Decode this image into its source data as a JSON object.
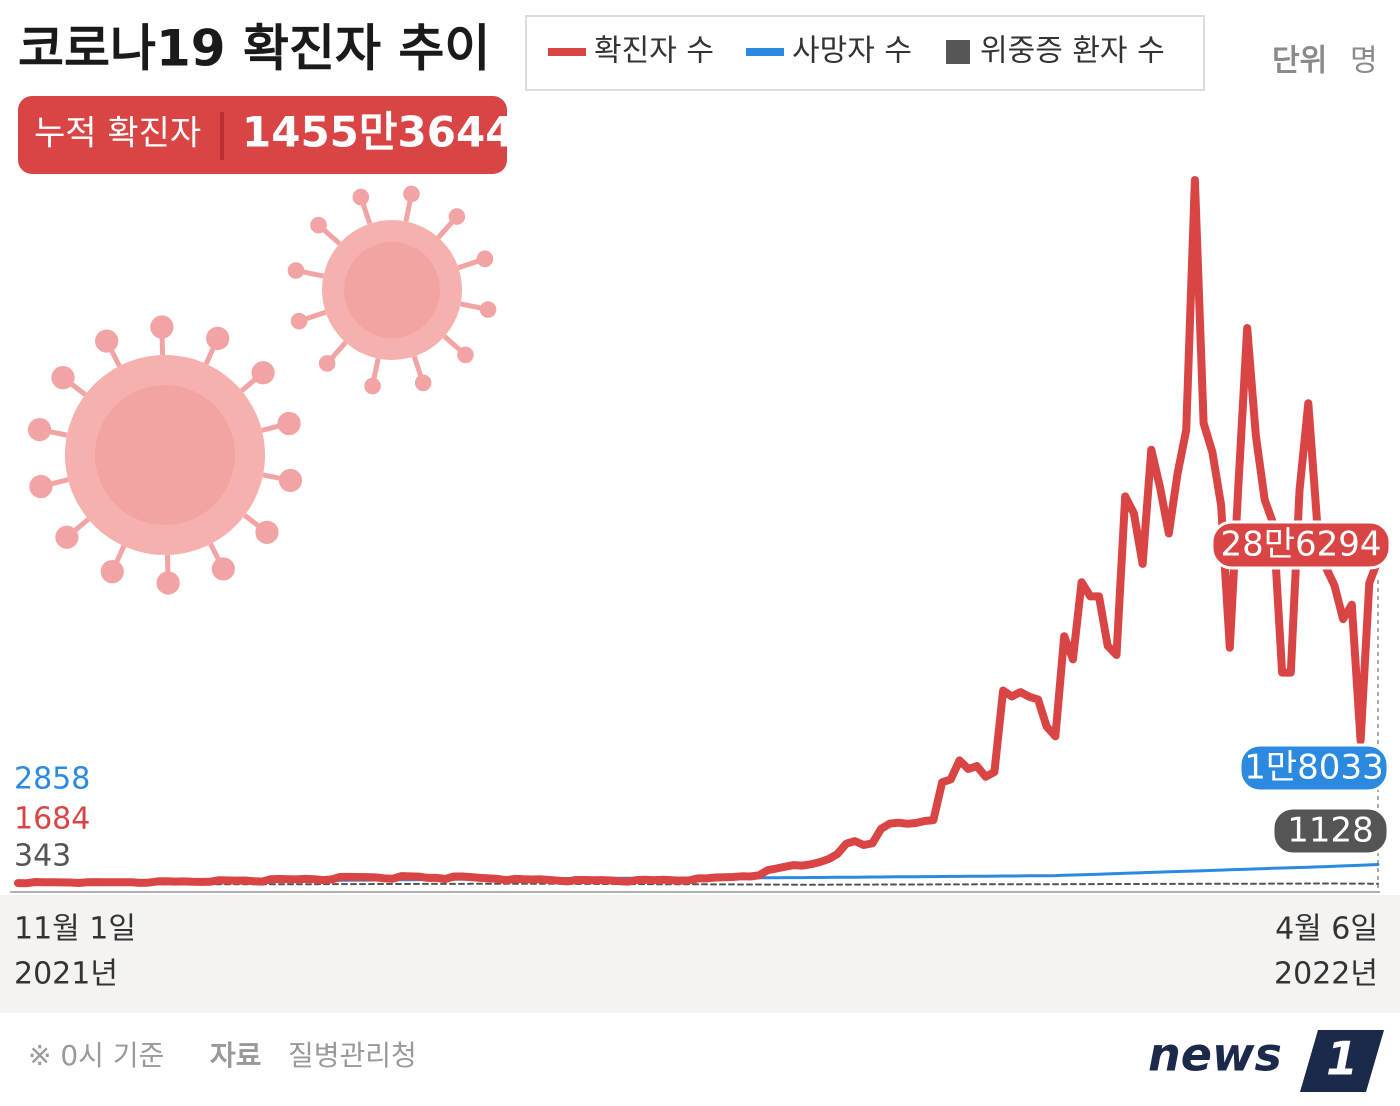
{
  "chart_data": {
    "type": "line",
    "title": "코로나19 확진자 추이",
    "unit_label": "단위",
    "unit": "명",
    "total_label": "누적 확진자",
    "total": "1455만3644",
    "x_start_year": "2021년",
    "x_end_year": "2022년",
    "categories": [
      "11월 1일",
      null,
      null,
      null,
      null,
      null,
      null,
      null,
      null,
      null,
      null,
      null,
      null,
      null,
      null,
      null,
      null,
      null,
      null,
      null,
      null,
      null,
      null,
      null,
      null,
      null,
      null,
      null,
      null,
      null,
      null,
      null,
      null,
      null,
      null,
      null,
      null,
      null,
      null,
      null,
      null,
      null,
      null,
      null,
      null,
      null,
      null,
      null,
      null,
      null,
      null,
      null,
      null,
      null,
      null,
      null,
      null,
      null,
      null,
      null,
      null,
      null,
      null,
      null,
      null,
      null,
      null,
      null,
      null,
      null,
      null,
      null,
      null,
      null,
      null,
      null,
      null,
      null,
      null,
      null,
      null,
      null,
      null,
      null,
      null,
      null,
      null,
      null,
      null,
      null,
      null,
      null,
      null,
      null,
      null,
      null,
      null,
      null,
      null,
      null,
      null,
      null,
      null,
      null,
      null,
      null,
      null,
      null,
      null,
      null,
      null,
      null,
      null,
      null,
      null,
      null,
      null,
      null,
      null,
      null,
      null,
      null,
      null,
      null,
      null,
      null,
      null,
      null,
      null,
      null,
      null,
      null,
      null,
      null,
      null,
      null,
      null,
      null,
      null,
      null,
      null,
      null,
      null,
      null,
      null,
      null,
      null,
      null,
      null,
      null,
      null,
      null,
      null,
      null,
      null,
      null,
      "4월 6일"
    ],
    "series": [
      {
        "name": "확진자 수",
        "color": "#d94545",
        "end_label": "28만6294",
        "values": [
          1684,
          1589,
          2667,
          2482,
          2344,
          2248,
          2224,
          1758,
          2425,
          2520,
          2368,
          2425,
          2419,
          2419,
          1889,
          2125,
          3187,
          3292,
          3034,
          3205,
          2827,
          2699,
          2827,
          4115,
          4068,
          3899,
          3928,
          3309,
          3032,
          5123,
          5266,
          5123,
          4944,
          5352,
          5128,
          4325,
          4954,
          7175,
          7102,
          7022,
          6977,
          6689,
          5817,
          5567,
          7850,
          7622,
          7435,
          6236,
          6233,
          5318,
          7456,
          7455,
          6919,
          6233,
          5842,
          5419,
          4207,
          5408,
          5037,
          4875,
          5035,
          4416,
          3833,
          3129,
          4442,
          4443,
          4126,
          4324,
          3998,
          3376,
          3005,
          4388,
          4542,
          4167,
          4542,
          4197,
          3859,
          4071,
          5804,
          5805,
          6603,
          6769,
          7009,
          7630,
          7513,
          8571,
          13012,
          14518,
          16096,
          17542,
          17079,
          18342,
          20270,
          22907,
          27443,
          36362,
          38689,
          35286,
          36719,
          49567,
          54122,
          54941,
          53926,
          54619,
          56431,
          57177,
          90443,
          93135,
          109831,
          102211,
          104829,
          95362,
          99573,
          171452,
          166207,
          170016,
          165890,
          163566,
          139626,
          131007,
          219241,
          198803,
          266853,
          254327,
          254327,
          210716,
          202721,
          342446,
          327549,
          282987,
          383665,
          350190,
          309790,
          362338,
          400741,
          621328,
          407017,
          381454,
          334708,
          209169,
          353980,
          490881,
          395598,
          339514,
          318130,
          187213,
          187213,
          347554,
          424641,
          320743,
          280273,
          264171,
          234301,
          247000,
          127190,
          266135,
          286294
        ]
      },
      {
        "name": "사망자 수",
        "color": "#2b8ae0",
        "end_label": "1만8033",
        "values": [
          2858,
          2886,
          2913,
          2941,
          2969,
          2996,
          3024,
          3052,
          3079,
          3107,
          3134,
          3162,
          3190,
          3217,
          3245,
          3273,
          3300,
          3328,
          3355,
          3383,
          3411,
          3438,
          3466,
          3494,
          3521,
          3549,
          3576,
          3603,
          3631,
          3658,
          3721,
          3785,
          3848,
          3912,
          3975,
          4039,
          4102,
          4166,
          4229,
          4293,
          4356,
          4420,
          4483,
          4547,
          4610,
          4674,
          4737,
          4801,
          4864,
          4928,
          4991,
          5055,
          5118,
          5182,
          5245,
          5309,
          5372,
          5436,
          5499,
          5562,
          5625,
          5656,
          5687,
          5718,
          5749,
          5780,
          5811,
          5843,
          5874,
          5905,
          5936,
          5967,
          5998,
          6029,
          6060,
          6091,
          6122,
          6153,
          6184,
          6215,
          6246,
          6277,
          6309,
          6340,
          6371,
          6402,
          6433,
          6464,
          6495,
          6526,
          6557,
          6588,
          6648,
          6708,
          6768,
          6828,
          6888,
          6948,
          7007,
          7067,
          7127,
          7187,
          7247,
          7307,
          7367,
          7427,
          7487,
          7547,
          7607,
          7667,
          7727,
          7786,
          7846,
          7906,
          7966,
          8026,
          8086,
          8146,
          8206,
          8266,
          8523,
          8780,
          9037,
          9294,
          9551,
          9808,
          10065,
          10322,
          10579,
          10836,
          11093,
          11350,
          11607,
          11864,
          12121,
          12378,
          12635,
          12892,
          13149,
          13406,
          13663,
          13920,
          14177,
          14434,
          14691,
          14948,
          15205,
          15462,
          15719,
          15976,
          16230,
          16530,
          16830,
          17130,
          17430,
          17730,
          18033
        ]
      },
      {
        "name": "위중증 환자 수",
        "color": "#555555",
        "end_label": "1128",
        "values": [
          343,
          354,
          365,
          376,
          387,
          398,
          409,
          420,
          431,
          442,
          453,
          464,
          475,
          486,
          497,
          508,
          519,
          530,
          541,
          552,
          563,
          574,
          585,
          596,
          607,
          618,
          629,
          640,
          651,
          661,
          677,
          693,
          709,
          725,
          741,
          757,
          773,
          789,
          805,
          821,
          837,
          853,
          869,
          885,
          901,
          917,
          933,
          949,
          965,
          981,
          997,
          1013,
          1029,
          1045,
          1061,
          1077,
          1093,
          1120,
          1151,
          1126,
          1102,
          1074,
          1046,
          1019,
          991,
          963,
          935,
          908,
          880,
          852,
          824,
          797,
          769,
          741,
          713,
          686,
          658,
          630,
          602,
          575,
          547,
          519,
          491,
          464,
          436,
          408,
          380,
          353,
          325,
          297,
          285,
          272,
          288,
          304,
          321,
          337,
          353,
          369,
          386,
          402,
          418,
          434,
          451,
          467,
          483,
          499,
          516,
          532,
          548,
          564,
          581,
          597,
          613,
          629,
          646,
          662,
          678,
          694,
          711,
          727,
          746,
          765,
          784,
          803,
          822,
          841,
          860,
          879,
          898,
          917,
          936,
          955,
          974,
          993,
          1012,
          1031,
          1050,
          1069,
          1088,
          1107,
          1126,
          1145,
          1164,
          1183,
          1202,
          1221,
          1240,
          1259,
          1278,
          1297,
          1315,
          1290,
          1260,
          1230,
          1190,
          1160,
          1128
        ]
      }
    ]
  },
  "footer": {
    "note": "※ 0시 기준",
    "source_label": "자료",
    "source": "질병관리청"
  },
  "logo": {
    "text": "news",
    "number": "1"
  }
}
